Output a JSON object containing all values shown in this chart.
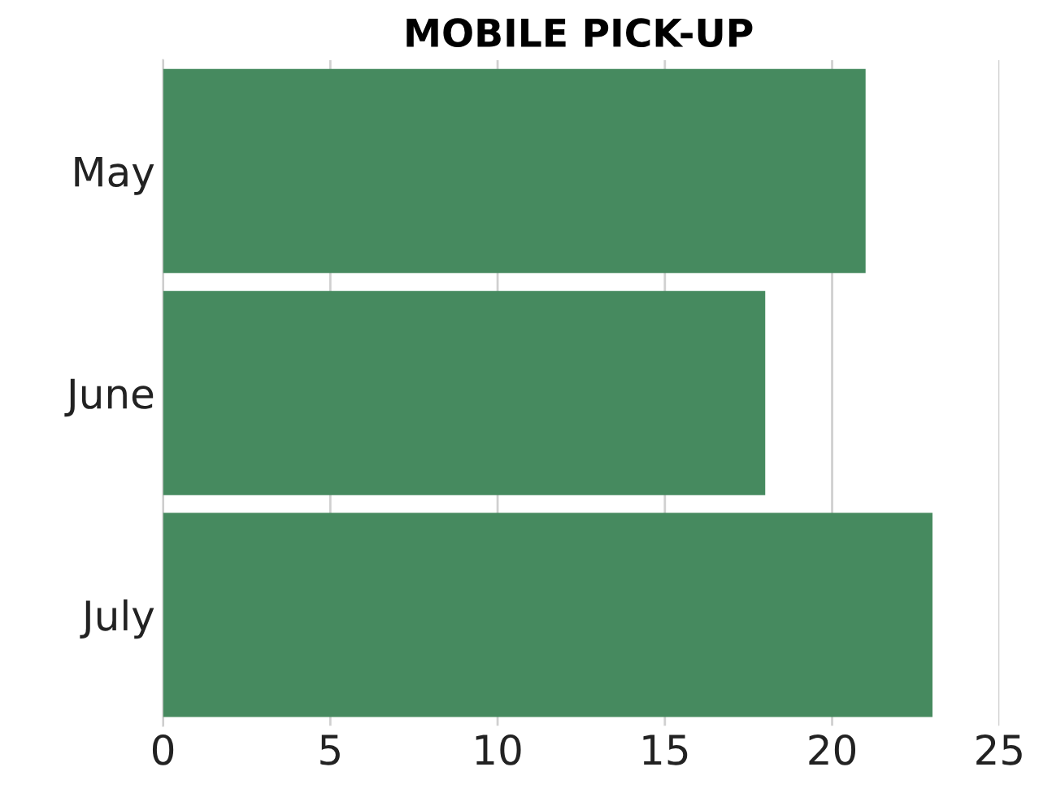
{
  "chart_data": {
    "type": "bar",
    "title": "MOBILE PICK-UP",
    "orientation": "horizontal",
    "categories": [
      "May",
      "June",
      "July"
    ],
    "values": [
      21,
      18,
      23
    ],
    "color": "#468a5f",
    "xlim": [
      0,
      25
    ],
    "xticks": [
      0,
      5,
      10,
      15,
      20,
      25
    ],
    "grid": "x"
  }
}
